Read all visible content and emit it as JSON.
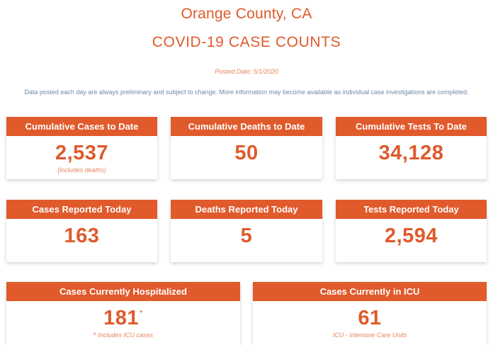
{
  "header": {
    "county": "Orange County, CA",
    "title": "COVID-19 CASE COUNTS",
    "posted_date": "Posted Date: 5/1/2020",
    "disclaimer": "Data posted each day are always preliminary and subject to change. More information may become available as individual case investigations are completed."
  },
  "cards": {
    "cumulative_cases": {
      "label": "Cumulative Cases to Date",
      "value": "2,537",
      "note": "(includes deaths)"
    },
    "cumulative_deaths": {
      "label": "Cumulative Deaths to Date",
      "value": "50"
    },
    "cumulative_tests": {
      "label": "Cumulative Tests To Date",
      "value": "34,128"
    },
    "cases_today": {
      "label": "Cases Reported Today",
      "value": "163"
    },
    "deaths_today": {
      "label": "Deaths Reported Today",
      "value": "5"
    },
    "tests_today": {
      "label": "Tests Reported Today",
      "value": "2,594"
    },
    "hospitalized": {
      "label": "Cases Currently Hospitalized",
      "value": "181",
      "star": "*",
      "note": "Includes ICU cases"
    },
    "icu": {
      "label": "Cases Currently in ICU",
      "value": "61",
      "note": "ICU - Intensive Care Units"
    }
  },
  "colors": {
    "accent": "#e05a2b",
    "note": "#e8845d",
    "disclaimer": "#6f88a8"
  }
}
